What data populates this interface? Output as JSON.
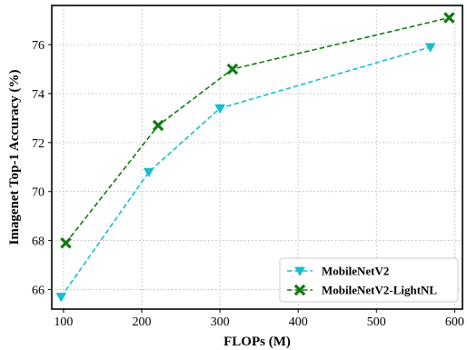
{
  "chart_data": {
    "type": "line",
    "title": "",
    "xlabel": "FLOPs (M)",
    "ylabel": "Imagenet Top-1 Accuracy (%)",
    "xlim": [
      85,
      610
    ],
    "ylim": [
      65.2,
      77.6
    ],
    "xticks": [
      100,
      200,
      300,
      400,
      500,
      600
    ],
    "yticks": [
      66,
      68,
      70,
      72,
      74,
      76
    ],
    "grid": true,
    "legend_position": "lower-right",
    "series": [
      {
        "name": "MobileNetV2",
        "color": "#17becf",
        "marker": "triangle-down",
        "line_style": "dashed",
        "points": [
          {
            "x": 97,
            "y": 65.7
          },
          {
            "x": 209,
            "y": 70.8
          },
          {
            "x": 300,
            "y": 73.4
          },
          {
            "x": 569,
            "y": 75.9
          }
        ]
      },
      {
        "name": "MobileNetV2-LightNL",
        "color": "#117a11",
        "marker": "x-filled",
        "line_style": "dashed",
        "points": [
          {
            "x": 103,
            "y": 67.9
          },
          {
            "x": 221,
            "y": 72.7
          },
          {
            "x": 316,
            "y": 75.0
          },
          {
            "x": 593,
            "y": 77.1
          }
        ]
      }
    ]
  }
}
